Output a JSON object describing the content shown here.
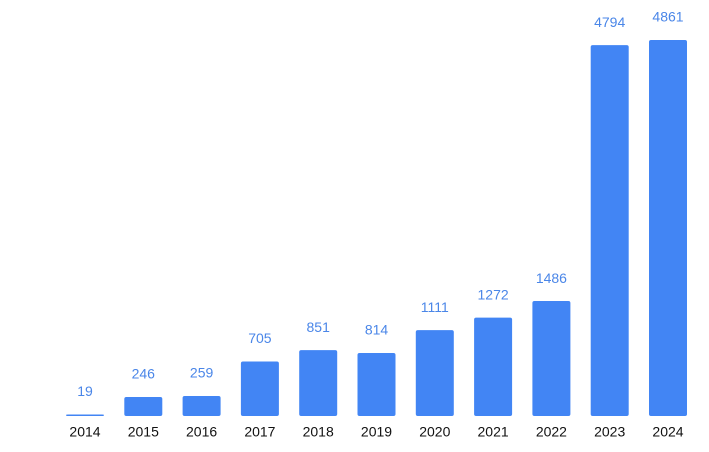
{
  "chart_data": {
    "type": "bar",
    "categories": [
      "2014",
      "2015",
      "2016",
      "2017",
      "2018",
      "2019",
      "2020",
      "2021",
      "2022",
      "2023",
      "2024"
    ],
    "values": [
      19,
      246,
      259,
      705,
      851,
      814,
      1111,
      1272,
      1486,
      4794,
      4861
    ],
    "color": "#4285f4",
    "label_color": "#4a86e8"
  }
}
